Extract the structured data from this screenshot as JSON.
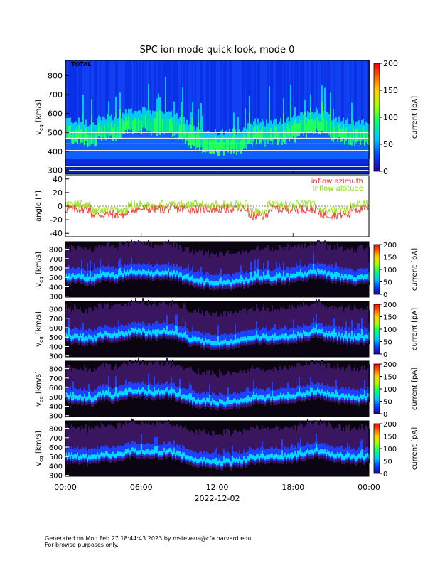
{
  "title": "SPC ion mode quick look, mode 0",
  "date_label": "2022-12-02",
  "footer": {
    "line1": "Generated on Mon Feb 27 18:44:43 2023 by mstevens@cfa.harvard.edu",
    "line2": "For browse purposes only."
  },
  "colors": {
    "azimuth": "#ff1a1a",
    "altitude": "#88e000"
  },
  "chart_data": [
    {
      "type": "heatmap",
      "panel": "total",
      "label": "TOTAL",
      "ylabel": "v",
      "ylabel_sub": "eq",
      "ylabel_unit": "[km/s]",
      "ylim": [
        280,
        880
      ],
      "yticks": [
        300,
        400,
        500,
        600,
        700,
        800
      ],
      "colorbar": {
        "label": "current [pA]",
        "range": [
          0,
          200
        ],
        "ticks": [
          0,
          50,
          100,
          150,
          200
        ]
      },
      "background": "blue"
    },
    {
      "type": "line",
      "panel": "angles",
      "ylabel": "angle [°]",
      "ylim": [
        -45,
        45
      ],
      "yticks": [
        -40,
        -20,
        0,
        20,
        40
      ],
      "series": [
        {
          "name": "inflow azimuth"
        },
        {
          "name": "inflow altitude"
        }
      ]
    },
    {
      "type": "heatmap",
      "panel": "sensor-1",
      "ylabel": "v",
      "ylabel_sub": "eq",
      "ylabel_unit": "[km/s]",
      "ylim": [
        290,
        880
      ],
      "yticks": [
        300,
        400,
        500,
        600,
        700,
        800
      ],
      "colorbar": {
        "label": "current [pA]",
        "range": [
          0,
          200
        ],
        "ticks": [
          0,
          50,
          100,
          150,
          200
        ]
      },
      "background": "dark"
    },
    {
      "type": "heatmap",
      "panel": "sensor-2",
      "ylabel": "v",
      "ylabel_sub": "eq",
      "ylabel_unit": "[km/s]",
      "ylim": [
        290,
        880
      ],
      "yticks": [
        300,
        400,
        500,
        600,
        700,
        800
      ],
      "colorbar": {
        "label": "current [pA]",
        "range": [
          0,
          200
        ],
        "ticks": [
          0,
          50,
          100,
          150,
          200
        ]
      },
      "background": "dark"
    },
    {
      "type": "heatmap",
      "panel": "sensor-3",
      "ylabel": "v",
      "ylabel_sub": "eq",
      "ylabel_unit": "[km/s]",
      "ylim": [
        290,
        880
      ],
      "yticks": [
        300,
        400,
        500,
        600,
        700,
        800
      ],
      "colorbar": {
        "label": "current [pA]",
        "range": [
          0,
          200
        ],
        "ticks": [
          0,
          50,
          100,
          150,
          200
        ]
      },
      "background": "dark"
    },
    {
      "type": "heatmap",
      "panel": "sensor-4",
      "ylabel": "v",
      "ylabel_sub": "eq",
      "ylabel_unit": "[km/s]",
      "ylim": [
        290,
        880
      ],
      "yticks": [
        300,
        400,
        500,
        600,
        700,
        800
      ],
      "colorbar": {
        "label": "current [pA]",
        "range": [
          0,
          200
        ],
        "ticks": [
          0,
          50,
          100,
          150,
          200
        ]
      },
      "background": "dark"
    }
  ],
  "x_axis": {
    "range_hours": [
      0,
      24
    ],
    "ticks": [
      {
        "hour": 0,
        "label": "00:00"
      },
      {
        "hour": 6,
        "label": "06:00"
      },
      {
        "hour": 12,
        "label": "12:00"
      },
      {
        "hour": 18,
        "label": "18:00"
      },
      {
        "hour": 24,
        "label": "00:00"
      }
    ]
  },
  "peak_velocity_profile": {
    "hours": [
      0,
      1,
      2,
      3,
      4,
      5,
      6,
      7,
      8,
      9,
      10,
      11,
      12,
      13,
      14,
      15,
      16,
      17,
      18,
      19,
      20,
      21,
      22,
      23,
      24
    ],
    "v": [
      510,
      500,
      480,
      530,
      510,
      560,
      560,
      540,
      560,
      520,
      470,
      450,
      440,
      440,
      460,
      500,
      490,
      500,
      510,
      540,
      560,
      520,
      500,
      490,
      500
    ]
  }
}
